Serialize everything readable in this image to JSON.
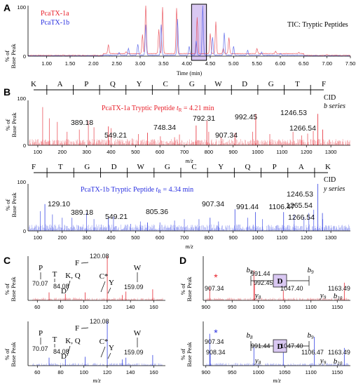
{
  "colors": {
    "red": "#e8404a",
    "blue": "#4a57e6",
    "purple": "#8a2be2",
    "box": "#d9c8f2",
    "labelred": "#e8202a",
    "labelblue": "#2a30e0"
  },
  "panels": {
    "a": "A",
    "b": "B",
    "c": "C",
    "d": "D"
  },
  "ylabel": {
    "line1": "% of",
    "line2": "Base Peak"
  },
  "panelA": {
    "legend": [
      "PcaTX-1a",
      "PcaTX-1b"
    ],
    "annotation": "TIC: Tryptic Peptides",
    "xlabel": "Time (min)",
    "xticks": [
      "1.00",
      "1.50",
      "2.00",
      "2.50",
      "3.00",
      "3.50",
      "4.00",
      "4.50",
      "5.00",
      "5.50",
      "6.00",
      "6.50",
      "7.00",
      "7.50"
    ],
    "yticks": [
      "0",
      "100"
    ]
  },
  "panelB1": {
    "sequence": [
      "K",
      "A",
      "P",
      "Q",
      "Y",
      "C",
      "G",
      "W",
      "D",
      "G",
      "T",
      "F"
    ],
    "cid": "CID",
    "series": "b series",
    "title_prefix": "PcaTX-1a Tryptic Peptide ",
    "title_t": "t",
    "title_sub": "R",
    "title_suffix": " = 4.21 min",
    "xticks": [
      "100",
      "200",
      "300",
      "400",
      "500",
      "600",
      "700",
      "800",
      "900",
      "1000",
      "1100",
      "1200",
      "1300"
    ],
    "xlabel": "m/z",
    "yticks": [
      "0",
      "100"
    ],
    "peaks": [
      "389.18",
      "549.21",
      "748.34",
      "792.31",
      "907.34",
      "992.45",
      "1246.53",
      "1266.54"
    ]
  },
  "panelB2": {
    "sequence": [
      "F",
      "T",
      "G",
      "D",
      "W",
      "G",
      "C",
      "Y",
      "Q",
      "P",
      "A",
      "K"
    ],
    "cid": "CID",
    "series": "y series",
    "title_prefix": "PcaTX-1b Tryptic Peptide ",
    "title_t": "t",
    "title_sub": "R",
    "title_suffix": " = 4.34 min",
    "xticks": [
      "100",
      "200",
      "300",
      "400",
      "500",
      "600",
      "700",
      "800",
      "900",
      "1000",
      "1100",
      "1200",
      "1300"
    ],
    "xlabel": "m/z",
    "yticks": [
      "0",
      "100"
    ],
    "peaks": [
      "129.10",
      "389.18",
      "549.21",
      "805.36",
      "907.34",
      "991.44",
      "1106.47",
      "1246.53",
      "1265.54",
      "1266.54"
    ]
  },
  "panelC": {
    "xticks": [
      "60",
      "80",
      "100",
      "120",
      "140",
      "160"
    ],
    "xlabel": "m/z",
    "yticks": [
      "0",
      "100"
    ],
    "top": {
      "labels": [
        "P",
        "70.07",
        "T",
        "84.08",
        "D",
        "K, Q",
        "F",
        "120.08",
        "C*",
        "Y",
        "W",
        "159.09"
      ]
    },
    "bottom": {
      "labels": [
        "P",
        "70.07",
        "T",
        "84.08",
        "D",
        "K, Q",
        "F",
        "120.08",
        "C*",
        "Y",
        "W",
        "159.09"
      ]
    }
  },
  "panelD": {
    "xticks": [
      "900",
      "950",
      "1000",
      "1050",
      "1100",
      "1150"
    ],
    "xlabel": "m/z",
    "yticks": [
      "0",
      "100"
    ],
    "fragment": "D",
    "top": {
      "star": "*",
      "peaks": [
        "907.34",
        "991.44",
        "992.45",
        "1047.40",
        "1163.49"
      ],
      "ions": [
        "b",
        "8",
        "b",
        "9",
        "b",
        "10",
        "y",
        "8",
        "y",
        "9"
      ]
    },
    "bottom": {
      "star": "*",
      "peaks": [
        "907.34",
        "908.34",
        "991.44",
        "1047.40",
        "1106.47",
        "1163.49"
      ],
      "ions": [
        "b",
        "8",
        "b",
        "9",
        "b",
        "10",
        "y",
        "8",
        "y",
        "9"
      ]
    }
  },
  "chart_data": [
    {
      "type": "line",
      "panel": "A",
      "annotation": "TIC: Tryptic Peptides",
      "xlabel": "Time (min)",
      "xlim": [
        0.6,
        7.5
      ],
      "ylim": [
        0,
        100
      ],
      "series": [
        {
          "name": "PcaTX-1a",
          "peaks": [
            [
              2.32,
              18
            ],
            [
              2.7,
              4
            ],
            [
              3.05,
              38
            ],
            [
              3.12,
              100
            ],
            [
              3.4,
              48
            ],
            [
              3.48,
              92
            ],
            [
              3.78,
              90
            ],
            [
              4.22,
              72
            ],
            [
              4.5,
              40
            ],
            [
              4.62,
              63
            ],
            [
              4.78,
              10
            ],
            [
              4.9,
              32
            ],
            [
              5.5,
              10
            ],
            [
              5.9,
              5
            ],
            [
              6.4,
              2
            ],
            [
              7.0,
              2
            ]
          ],
          "baseline": 5
        },
        {
          "name": "PcaTX-1b",
          "peaks": [
            [
              2.55,
              5
            ],
            [
              2.75,
              14
            ],
            [
              2.95,
              22
            ],
            [
              3.12,
              60
            ],
            [
              3.45,
              60
            ],
            [
              3.8,
              72
            ],
            [
              4.05,
              17
            ],
            [
              4.2,
              28
            ],
            [
              4.34,
              100
            ],
            [
              4.55,
              36
            ],
            [
              4.8,
              45
            ],
            [
              5.0,
              18
            ],
            [
              5.3,
              10
            ],
            [
              5.6,
              6
            ],
            [
              6.0,
              3
            ]
          ],
          "baseline": 2
        }
      ],
      "highlight": {
        "xmin": 4.1,
        "xmax": 4.42
      }
    },
    {
      "type": "bar",
      "panel": "B-top",
      "title": "PcaTX-1a Tryptic Peptide tR = 4.21 min",
      "xlabel": "m/z",
      "xlim": [
        60,
        1380
      ],
      "ylim": [
        0,
        100
      ],
      "labeled_peaks": [
        [
          389.18,
          42
        ],
        [
          549.21,
          28
        ],
        [
          748.34,
          44
        ],
        [
          792.31,
          55
        ],
        [
          907.34,
          27
        ],
        [
          992.45,
          70
        ],
        [
          1246.53,
          70
        ],
        [
          1266.54,
          35
        ]
      ],
      "extra_peaks": [
        [
          120,
          85
        ],
        [
          147,
          60
        ],
        [
          180,
          52
        ],
        [
          220,
          30
        ],
        [
          270,
          35
        ],
        [
          307,
          55
        ],
        [
          330,
          40
        ],
        [
          400,
          38
        ],
        [
          487,
          15
        ],
        [
          512,
          25
        ],
        [
          602,
          20
        ],
        [
          660,
          18
        ],
        [
          680,
          24
        ],
        [
          800,
          30
        ],
        [
          850,
          18
        ],
        [
          980,
          30
        ],
        [
          1050,
          25
        ],
        [
          1145,
          30
        ],
        [
          1180,
          22
        ],
        [
          1205,
          26
        ],
        [
          1228,
          32
        ]
      ]
    },
    {
      "type": "bar",
      "panel": "B-bottom",
      "title": "PcaTX-1b Tryptic Peptide tR = 4.34 min",
      "xlabel": "m/z",
      "xlim": [
        60,
        1380
      ],
      "ylim": [
        0,
        100
      ],
      "labeled_peaks": [
        [
          129.1,
          57
        ],
        [
          389.18,
          30
        ],
        [
          549.21,
          18
        ],
        [
          805.36,
          28
        ],
        [
          907.34,
          46
        ],
        [
          991.44,
          40
        ],
        [
          1106.47,
          40
        ],
        [
          1246.53,
          100
        ],
        [
          1265.54,
          38
        ],
        [
          1266.54,
          25
        ]
      ],
      "extra_peaks": [
        [
          110,
          42
        ],
        [
          160,
          35
        ],
        [
          200,
          28
        ],
        [
          240,
          28
        ],
        [
          300,
          38
        ],
        [
          330,
          25
        ],
        [
          410,
          30
        ],
        [
          480,
          15
        ],
        [
          520,
          20
        ],
        [
          600,
          18
        ],
        [
          660,
          22
        ],
        [
          700,
          25
        ],
        [
          760,
          25
        ],
        [
          840,
          20
        ],
        [
          960,
          28
        ],
        [
          1020,
          25
        ],
        [
          1150,
          35
        ],
        [
          1190,
          30
        ],
        [
          1210,
          38
        ],
        [
          1230,
          45
        ]
      ]
    },
    {
      "type": "bar",
      "panel": "C-top",
      "xlabel": "m/z",
      "xlim": [
        52,
        170
      ],
      "ylim": [
        0,
        100
      ],
      "labeled_peaks": [
        [
          70.07,
          18
        ],
        [
          84.08,
          15
        ],
        [
          101.07,
          18
        ],
        [
          120.08,
          100
        ],
        [
          133.04,
          12
        ],
        [
          136.08,
          20
        ],
        [
          159.09,
          25
        ]
      ]
    },
    {
      "type": "bar",
      "panel": "C-bottom",
      "xlabel": "m/z",
      "xlim": [
        52,
        170
      ],
      "ylim": [
        0,
        100
      ],
      "labeled_peaks": [
        [
          70.07,
          18
        ],
        [
          84.08,
          15
        ],
        [
          101.07,
          20
        ],
        [
          120.08,
          100
        ],
        [
          133.04,
          14
        ],
        [
          136.08,
          18
        ],
        [
          159.09,
          24
        ]
      ]
    },
    {
      "type": "bar",
      "panel": "D-top",
      "xlabel": "m/z",
      "xlim": [
        895,
        1175
      ],
      "ylim": [
        0,
        100
      ],
      "labeled_peaks": [
        [
          907.34,
          30
        ],
        [
          991.44,
          68
        ],
        [
          992.45,
          38
        ],
        [
          1047.4,
          22
        ],
        [
          1163.49,
          40
        ]
      ]
    },
    {
      "type": "bar",
      "panel": "D-bottom",
      "xlabel": "m/z",
      "xlim": [
        895,
        1175
      ],
      "ylim": [
        0,
        100
      ],
      "labeled_peaks": [
        [
          907.34,
          72
        ],
        [
          908.34,
          28
        ],
        [
          991.44,
          42
        ],
        [
          1047.4,
          30
        ],
        [
          1106.47,
          65
        ],
        [
          1163.49,
          40
        ]
      ]
    }
  ]
}
